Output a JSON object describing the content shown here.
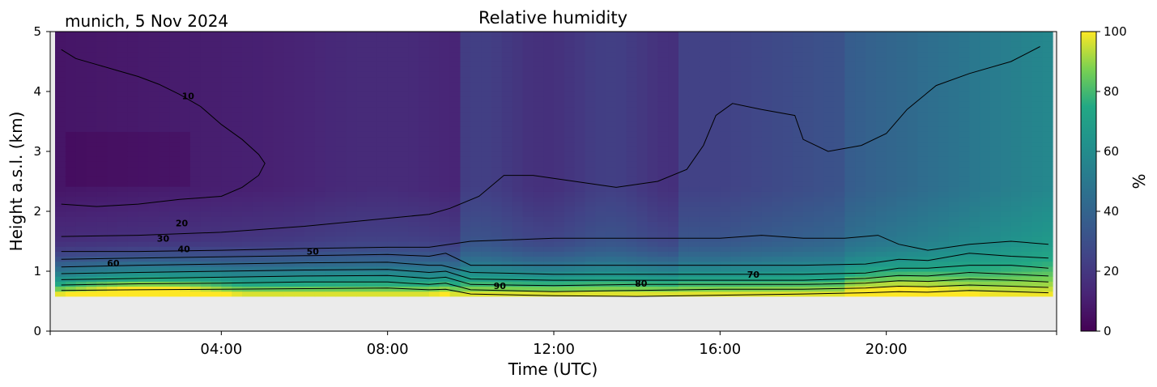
{
  "chart_data": {
    "type": "heatmap",
    "title": "Relative humidity",
    "subtitle": "munich, 5 Nov 2024",
    "xlabel": "Time (UTC)",
    "ylabel": "Height a.s.l. (km)",
    "colorbar_label": "%",
    "colormap": "viridis",
    "xlim": [
      0,
      24
    ],
    "ylim": [
      0,
      5
    ],
    "color_range": [
      0,
      100
    ],
    "x_ticks": [
      "04:00",
      "08:00",
      "12:00",
      "16:00",
      "20:00"
    ],
    "x_tick_hours": [
      4,
      8,
      12,
      16,
      20
    ],
    "y_ticks": [
      0,
      1,
      2,
      3,
      4,
      5
    ],
    "colorbar_ticks": [
      0,
      20,
      40,
      60,
      80,
      100
    ],
    "no_data_below_km": 0.55,
    "contour_labels": [
      {
        "text": "10",
        "x": 3.2,
        "y": 3.87
      },
      {
        "text": "20",
        "x": 3.05,
        "y": 1.75
      },
      {
        "text": "30",
        "x": 2.6,
        "y": 1.49
      },
      {
        "text": "40",
        "x": 3.1,
        "y": 1.32
      },
      {
        "text": "50",
        "x": 6.2,
        "y": 1.28
      },
      {
        "text": "60",
        "x": 1.4,
        "y": 1.08
      },
      {
        "text": "70",
        "x": 16.8,
        "y": 0.89
      },
      {
        "text": "80",
        "x": 14.1,
        "y": 0.74
      },
      {
        "text": "90",
        "x": 10.7,
        "y": 0.7
      }
    ],
    "contour_lines": [
      {
        "level": 10,
        "points": [
          [
            0.15,
            4.7
          ],
          [
            0.5,
            4.55
          ],
          [
            1.0,
            4.45
          ],
          [
            1.5,
            4.35
          ],
          [
            2.0,
            4.25
          ],
          [
            2.5,
            4.12
          ],
          [
            3.0,
            3.95
          ],
          [
            3.5,
            3.75
          ],
          [
            4.0,
            3.45
          ],
          [
            4.5,
            3.2
          ],
          [
            4.9,
            2.95
          ],
          [
            5.05,
            2.8
          ],
          [
            4.9,
            2.6
          ],
          [
            4.5,
            2.4
          ],
          [
            4.0,
            2.25
          ],
          [
            3.0,
            2.2
          ],
          [
            2.0,
            2.12
          ],
          [
            1.0,
            2.08
          ],
          [
            0.15,
            2.12
          ]
        ]
      },
      {
        "level": 20,
        "points": [
          [
            0.15,
            1.58
          ],
          [
            2,
            1.6
          ],
          [
            4,
            1.65
          ],
          [
            6,
            1.75
          ],
          [
            7.5,
            1.85
          ],
          [
            9,
            1.95
          ],
          [
            9.5,
            2.05
          ],
          [
            10.2,
            2.25
          ],
          [
            10.8,
            2.6
          ],
          [
            11.5,
            2.6
          ],
          [
            12.5,
            2.5
          ],
          [
            13.5,
            2.4
          ],
          [
            14.5,
            2.5
          ],
          [
            15.2,
            2.7
          ],
          [
            15.6,
            3.1
          ],
          [
            15.9,
            3.6
          ],
          [
            16.3,
            3.8
          ],
          [
            17.0,
            3.7
          ],
          [
            17.8,
            3.6
          ],
          [
            18.0,
            3.2
          ],
          [
            18.6,
            3.0
          ],
          [
            19.4,
            3.1
          ],
          [
            20.0,
            3.3
          ],
          [
            20.5,
            3.7
          ],
          [
            21.2,
            4.1
          ],
          [
            22.0,
            4.3
          ],
          [
            23.0,
            4.5
          ],
          [
            23.7,
            4.75
          ]
        ]
      },
      {
        "level": 30,
        "points": [
          [
            0.15,
            1.33
          ],
          [
            2,
            1.33
          ],
          [
            4,
            1.35
          ],
          [
            6,
            1.38
          ],
          [
            8,
            1.4
          ],
          [
            9,
            1.4
          ],
          [
            10,
            1.5
          ],
          [
            12,
            1.55
          ],
          [
            14,
            1.55
          ],
          [
            16,
            1.55
          ],
          [
            17,
            1.6
          ],
          [
            18,
            1.55
          ],
          [
            19,
            1.55
          ],
          [
            19.8,
            1.6
          ],
          [
            20.3,
            1.45
          ],
          [
            21,
            1.35
          ],
          [
            22,
            1.45
          ],
          [
            23,
            1.5
          ],
          [
            23.9,
            1.45
          ]
        ]
      },
      {
        "level": 40,
        "points": [
          [
            0.15,
            1.2
          ],
          [
            2,
            1.22
          ],
          [
            4,
            1.24
          ],
          [
            6,
            1.26
          ],
          [
            8,
            1.28
          ],
          [
            9,
            1.25
          ],
          [
            9.4,
            1.3
          ],
          [
            10,
            1.1
          ],
          [
            12,
            1.1
          ],
          [
            14,
            1.1
          ],
          [
            16,
            1.1
          ],
          [
            18,
            1.1
          ],
          [
            19.5,
            1.12
          ],
          [
            20.3,
            1.2
          ],
          [
            21,
            1.18
          ],
          [
            22,
            1.3
          ],
          [
            23,
            1.25
          ],
          [
            23.9,
            1.22
          ]
        ]
      },
      {
        "level": 50,
        "points": [
          [
            0.15,
            1.07
          ],
          [
            2,
            1.1
          ],
          [
            4,
            1.12
          ],
          [
            6,
            1.14
          ],
          [
            8,
            1.15
          ],
          [
            9,
            1.1
          ],
          [
            9.3,
            1.1
          ],
          [
            10,
            0.98
          ],
          [
            12,
            0.95
          ],
          [
            14,
            0.95
          ],
          [
            16,
            0.95
          ],
          [
            18,
            0.95
          ],
          [
            19.5,
            0.97
          ],
          [
            20.3,
            1.05
          ],
          [
            21,
            1.05
          ],
          [
            22,
            1.1
          ],
          [
            23,
            1.1
          ],
          [
            23.9,
            1.05
          ]
        ]
      },
      {
        "level": 60,
        "points": [
          [
            0.15,
            0.96
          ],
          [
            2,
            0.98
          ],
          [
            4,
            1.0
          ],
          [
            6,
            1.02
          ],
          [
            8,
            1.03
          ],
          [
            9,
            0.98
          ],
          [
            9.4,
            1.0
          ],
          [
            10,
            0.87
          ],
          [
            12,
            0.85
          ],
          [
            14,
            0.85
          ],
          [
            16,
            0.85
          ],
          [
            18,
            0.85
          ],
          [
            19.5,
            0.88
          ],
          [
            20.3,
            0.93
          ],
          [
            21,
            0.92
          ],
          [
            22,
            0.98
          ],
          [
            23,
            0.95
          ],
          [
            23.9,
            0.92
          ]
        ]
      },
      {
        "level": 70,
        "points": [
          [
            0.15,
            0.86
          ],
          [
            2,
            0.88
          ],
          [
            4,
            0.9
          ],
          [
            6,
            0.92
          ],
          [
            8,
            0.93
          ],
          [
            9,
            0.88
          ],
          [
            9.4,
            0.9
          ],
          [
            10,
            0.78
          ],
          [
            12,
            0.76
          ],
          [
            14,
            0.78
          ],
          [
            16,
            0.78
          ],
          [
            18,
            0.78
          ],
          [
            19.5,
            0.8
          ],
          [
            20.3,
            0.84
          ],
          [
            21,
            0.83
          ],
          [
            22,
            0.87
          ],
          [
            23,
            0.85
          ],
          [
            23.9,
            0.82
          ]
        ]
      },
      {
        "level": 80,
        "points": [
          [
            0.15,
            0.77
          ],
          [
            2,
            0.79
          ],
          [
            4,
            0.8
          ],
          [
            6,
            0.82
          ],
          [
            8,
            0.82
          ],
          [
            9,
            0.78
          ],
          [
            9.4,
            0.8
          ],
          [
            10,
            0.69
          ],
          [
            12,
            0.66
          ],
          [
            14,
            0.68
          ],
          [
            16,
            0.7
          ],
          [
            18,
            0.7
          ],
          [
            19.5,
            0.72
          ],
          [
            20.3,
            0.75
          ],
          [
            21,
            0.74
          ],
          [
            22,
            0.77
          ],
          [
            23,
            0.75
          ],
          [
            23.9,
            0.73
          ]
        ]
      },
      {
        "level": 90,
        "points": [
          [
            0.15,
            0.68
          ],
          [
            2,
            0.69
          ],
          [
            4,
            0.7
          ],
          [
            6,
            0.71
          ],
          [
            8,
            0.72
          ],
          [
            9,
            0.69
          ],
          [
            9.4,
            0.7
          ],
          [
            10,
            0.62
          ],
          [
            12,
            0.59
          ],
          [
            14,
            0.58
          ],
          [
            16,
            0.6
          ],
          [
            18,
            0.62
          ],
          [
            19.5,
            0.64
          ],
          [
            20.3,
            0.66
          ],
          [
            21,
            0.65
          ],
          [
            22,
            0.68
          ],
          [
            23,
            0.66
          ],
          [
            23.9,
            0.64
          ]
        ]
      }
    ]
  }
}
